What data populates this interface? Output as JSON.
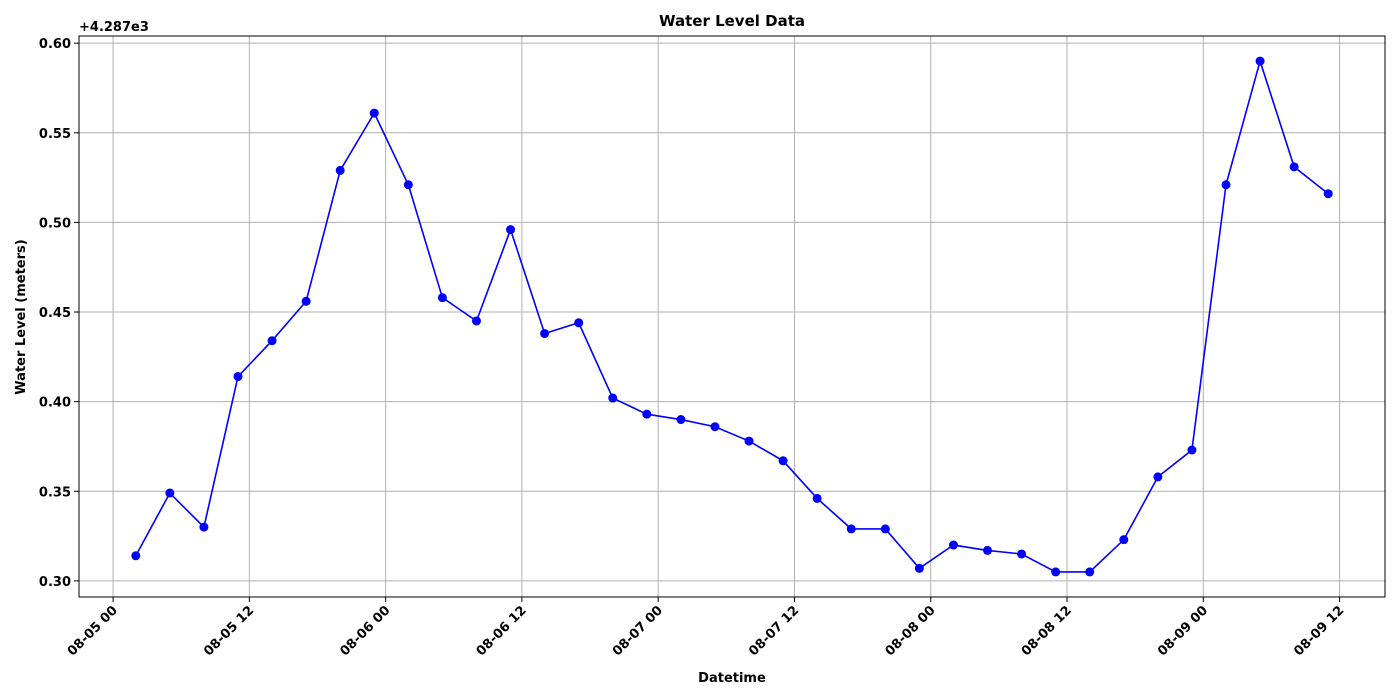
{
  "chart_data": {
    "type": "line",
    "title": "Water Level Data",
    "x_label": "Datetime",
    "y_label": "Water Level (meters)",
    "y_offset_label": "+4.287e3",
    "x": [
      "08-05 02",
      "08-05 05",
      "08-05 08",
      "08-05 11",
      "08-05 14",
      "08-05 17",
      "08-05 20",
      "08-05 23",
      "08-06 02",
      "08-06 05",
      "08-06 08",
      "08-06 11",
      "08-06 14",
      "08-06 17",
      "08-06 20",
      "08-06 23",
      "08-07 02",
      "08-07 05",
      "08-07 08",
      "08-07 11",
      "08-07 14",
      "08-07 17",
      "08-07 20",
      "08-07 23",
      "08-08 02",
      "08-08 05",
      "08-08 08",
      "08-08 11",
      "08-08 14",
      "08-08 17",
      "08-08 20",
      "08-08 23",
      "08-09 02",
      "08-09 05",
      "08-09 08",
      "08-09 11"
    ],
    "values": [
      0.314,
      0.349,
      0.33,
      0.414,
      0.434,
      0.456,
      0.529,
      0.561,
      0.521,
      0.458,
      0.445,
      0.496,
      0.438,
      0.444,
      0.402,
      0.393,
      0.39,
      0.386,
      0.378,
      0.367,
      0.346,
      0.329,
      0.329,
      0.307,
      0.32,
      0.317,
      0.315,
      0.305,
      0.305,
      0.323,
      0.358,
      0.373,
      0.521,
      0.59,
      0.531,
      0.516
    ],
    "color": "#0000ff",
    "xlim": [
      "08-04 21",
      "08-09 16"
    ],
    "xticks": [
      "08-05 00",
      "08-05 12",
      "08-06 00",
      "08-06 12",
      "08-07 00",
      "08-07 12",
      "08-08 00",
      "08-08 12",
      "08-09 00",
      "08-09 12"
    ],
    "ylim": [
      0.291,
      0.604
    ],
    "yticks": [
      {
        "value": 0.3,
        "label": "0.30"
      },
      {
        "value": 0.35,
        "label": "0.35"
      },
      {
        "value": 0.4,
        "label": "0.40"
      },
      {
        "value": 0.45,
        "label": "0.45"
      },
      {
        "value": 0.5,
        "label": "0.50"
      },
      {
        "value": 0.55,
        "label": "0.55"
      },
      {
        "value": 0.6,
        "label": "0.60"
      }
    ],
    "grid": true
  }
}
